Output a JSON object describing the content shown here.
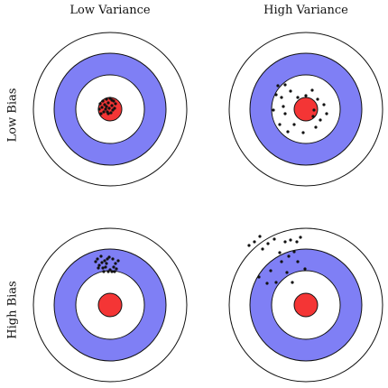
{
  "labels": {
    "columns": [
      "Low Variance",
      "High Variance"
    ],
    "rows": [
      "Low Bias",
      "High Bias"
    ]
  },
  "colors": {
    "ring_outer": "#ffffff",
    "ring_blue": "#7f7ff5",
    "ring_inner": "#ffffff",
    "bullseye": "#f43535",
    "stroke": "#111111",
    "dot": "#111111"
  },
  "panels": [
    {
      "id": "low-bias-low-variance",
      "row": "Low Bias",
      "column": "Low Variance",
      "dot_count": 22
    },
    {
      "id": "low-bias-high-variance",
      "row": "Low Bias",
      "column": "High Variance",
      "dot_count": 22
    },
    {
      "id": "high-bias-low-variance",
      "row": "High Bias",
      "column": "Low Variance",
      "dot_count": 22
    },
    {
      "id": "high-bias-high-variance",
      "row": "High Bias",
      "column": "High Variance",
      "dot_count": 22
    }
  ]
}
